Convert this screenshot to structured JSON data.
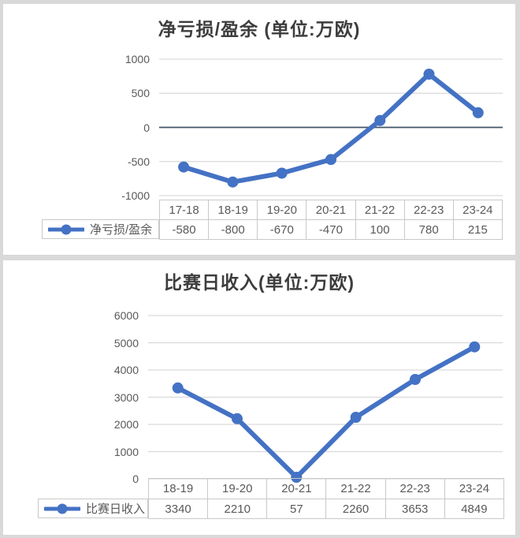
{
  "colors": {
    "series_blue": "#4472C4",
    "gridline": "#d9d9d9",
    "zero_axis": "#44546A",
    "table_border": "#c9c9c9",
    "label_gray": "#595959",
    "title_gray": "#3d3d3d",
    "frame_gray": "#d9d9d9"
  },
  "chart_data": [
    {
      "type": "line",
      "title": "净亏损/盈余 (单位:万欧)",
      "series": [
        {
          "name": "净亏损/盈余",
          "values": [
            -580,
            -800,
            -670,
            -470,
            100,
            780,
            215
          ]
        }
      ],
      "categories": [
        "17-18",
        "18-19",
        "19-20",
        "20-21",
        "21-22",
        "22-23",
        "23-24"
      ],
      "ylim": [
        -1000,
        1000
      ],
      "yticks": [
        1000,
        500,
        0,
        -500,
        -1000
      ],
      "grid": true,
      "legend_position": "table-left",
      "marker": "circle"
    },
    {
      "type": "line",
      "title": "比赛日收入(单位:万欧)",
      "series": [
        {
          "name": "比赛日收入",
          "values": [
            3340,
            2210,
            57,
            2260,
            3653,
            4849
          ]
        }
      ],
      "categories": [
        "18-19",
        "19-20",
        "20-21",
        "21-22",
        "22-23",
        "23-24"
      ],
      "ylim": [
        0,
        6000
      ],
      "yticks": [
        6000,
        5000,
        4000,
        3000,
        2000,
        1000,
        0
      ],
      "grid": true,
      "legend_position": "table-left",
      "marker": "circle"
    }
  ]
}
